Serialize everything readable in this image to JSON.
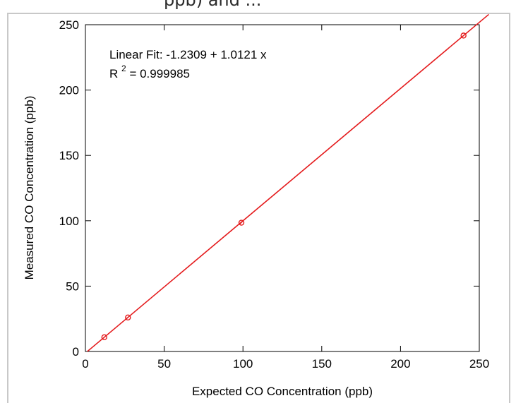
{
  "header": {
    "cropped_title": "ppb) and ..."
  },
  "chart_data": {
    "type": "scatter",
    "xlabel": "Expected CO Concentration (ppb)",
    "ylabel": "Measured CO Concentration (ppb)",
    "xlim": [
      0,
      250
    ],
    "ylim": [
      0,
      250
    ],
    "xticks": [
      0,
      50,
      100,
      150,
      200,
      250
    ],
    "yticks": [
      0,
      50,
      100,
      150,
      200,
      250
    ],
    "grid": false,
    "series": [
      {
        "points": [
          {
            "x": 12,
            "y": 10.9
          },
          {
            "x": 27,
            "y": 26.0
          },
          {
            "x": 99,
            "y": 98.5
          },
          {
            "x": 240,
            "y": 241.7
          }
        ],
        "color": "#e41a1c"
      }
    ],
    "fit": {
      "intercept": -1.2309,
      "slope": 1.0121,
      "x_range": [
        1.2,
        256
      ],
      "color": "#e41a1c"
    },
    "annotations": {
      "fit_text": "Linear Fit: -1.2309 + 1.0121 x",
      "r2_base": "R",
      "r2_exp": "2",
      "r2_value": " = 0.999985"
    }
  }
}
